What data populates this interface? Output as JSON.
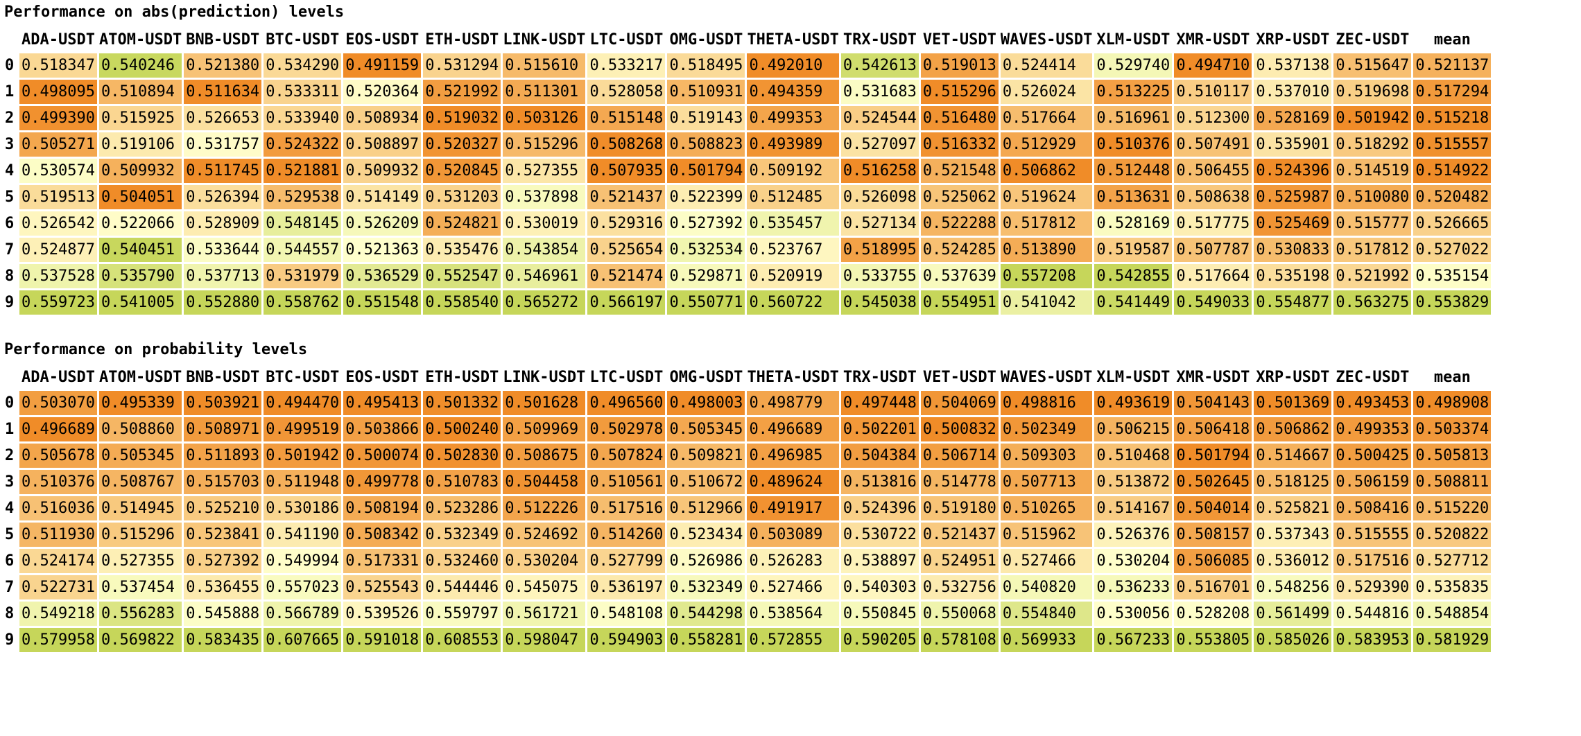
{
  "tables": [
    {
      "title": "Performance on abs(prediction) levels",
      "columns": [
        "ADA-USDT",
        "ATOM-USDT",
        "BNB-USDT",
        "BTC-USDT",
        "EOS-USDT",
        "ETH-USDT",
        "LINK-USDT",
        "LTC-USDT",
        "OMG-USDT",
        "THETA-USDT",
        "TRX-USDT",
        "VET-USDT",
        "WAVES-USDT",
        "XLM-USDT",
        "XMR-USDT",
        "XRP-USDT",
        "ZEC-USDT",
        "mean"
      ],
      "index": [
        "0",
        "1",
        "2",
        "3",
        "4",
        "5",
        "6",
        "7",
        "8",
        "9"
      ],
      "rows": [
        [
          "0.518347",
          "0.540246",
          "0.521380",
          "0.534290",
          "0.491159",
          "0.531294",
          "0.515610",
          "0.533217",
          "0.518495",
          "0.492010",
          "0.542613",
          "0.519013",
          "0.524414",
          "0.529740",
          "0.494710",
          "0.537138",
          "0.515647",
          "0.521137"
        ],
        [
          "0.498095",
          "0.510894",
          "0.511634",
          "0.533311",
          "0.520364",
          "0.521992",
          "0.511301",
          "0.528058",
          "0.510931",
          "0.494359",
          "0.531683",
          "0.515296",
          "0.526024",
          "0.513225",
          "0.510117",
          "0.537010",
          "0.519698",
          "0.517294"
        ],
        [
          "0.499390",
          "0.515925",
          "0.526653",
          "0.533940",
          "0.508934",
          "0.519032",
          "0.503126",
          "0.515148",
          "0.519143",
          "0.499353",
          "0.524544",
          "0.516480",
          "0.517664",
          "0.516961",
          "0.512300",
          "0.528169",
          "0.501942",
          "0.515218"
        ],
        [
          "0.505271",
          "0.519106",
          "0.531757",
          "0.524322",
          "0.508897",
          "0.520327",
          "0.515296",
          "0.508268",
          "0.508823",
          "0.493989",
          "0.527097",
          "0.516332",
          "0.512929",
          "0.510376",
          "0.507491",
          "0.535901",
          "0.518292",
          "0.515557"
        ],
        [
          "0.530574",
          "0.509932",
          "0.511745",
          "0.521881",
          "0.509932",
          "0.520845",
          "0.527355",
          "0.507935",
          "0.501794",
          "0.509192",
          "0.516258",
          "0.521548",
          "0.506862",
          "0.512448",
          "0.506455",
          "0.524396",
          "0.514519",
          "0.514922"
        ],
        [
          "0.519513",
          "0.504051",
          "0.526394",
          "0.529538",
          "0.514149",
          "0.531203",
          "0.537898",
          "0.521437",
          "0.522399",
          "0.512485",
          "0.526098",
          "0.525062",
          "0.519624",
          "0.513631",
          "0.508638",
          "0.525987",
          "0.510080",
          "0.520482"
        ],
        [
          "0.526542",
          "0.522066",
          "0.528909",
          "0.548145",
          "0.526209",
          "0.524821",
          "0.530019",
          "0.529316",
          "0.527392",
          "0.535457",
          "0.527134",
          "0.522288",
          "0.517812",
          "0.528169",
          "0.517775",
          "0.525469",
          "0.515777",
          "0.526665"
        ],
        [
          "0.524877",
          "0.540451",
          "0.533644",
          "0.544557",
          "0.521363",
          "0.535476",
          "0.543854",
          "0.525654",
          "0.532534",
          "0.523767",
          "0.518995",
          "0.524285",
          "0.513890",
          "0.519587",
          "0.507787",
          "0.530833",
          "0.517812",
          "0.527022"
        ],
        [
          "0.537528",
          "0.535790",
          "0.537713",
          "0.531979",
          "0.536529",
          "0.552547",
          "0.546961",
          "0.521474",
          "0.529871",
          "0.520919",
          "0.533755",
          "0.537639",
          "0.557208",
          "0.542855",
          "0.517664",
          "0.535198",
          "0.521992",
          "0.535154"
        ],
        [
          "0.559723",
          "0.541005",
          "0.552880",
          "0.558762",
          "0.551548",
          "0.558540",
          "0.565272",
          "0.566197",
          "0.550771",
          "0.560722",
          "0.545038",
          "0.554951",
          "0.541042",
          "0.541449",
          "0.549033",
          "0.554877",
          "0.563275",
          "0.553829"
        ]
      ]
    },
    {
      "title": "Performance on probability levels",
      "columns": [
        "ADA-USDT",
        "ATOM-USDT",
        "BNB-USDT",
        "BTC-USDT",
        "EOS-USDT",
        "ETH-USDT",
        "LINK-USDT",
        "LTC-USDT",
        "OMG-USDT",
        "THETA-USDT",
        "TRX-USDT",
        "VET-USDT",
        "WAVES-USDT",
        "XLM-USDT",
        "XMR-USDT",
        "XRP-USDT",
        "ZEC-USDT",
        "mean"
      ],
      "index": [
        "0",
        "1",
        "2",
        "3",
        "4",
        "5",
        "6",
        "7",
        "8",
        "9"
      ],
      "rows": [
        [
          "0.503070",
          "0.495339",
          "0.503921",
          "0.494470",
          "0.495413",
          "0.501332",
          "0.501628",
          "0.496560",
          "0.498003",
          "0.498779",
          "0.497448",
          "0.504069",
          "0.498816",
          "0.493619",
          "0.504143",
          "0.501369",
          "0.493453",
          "0.498908"
        ],
        [
          "0.496689",
          "0.508860",
          "0.508971",
          "0.499519",
          "0.503866",
          "0.500240",
          "0.509969",
          "0.502978",
          "0.505345",
          "0.496689",
          "0.502201",
          "0.500832",
          "0.502349",
          "0.506215",
          "0.506418",
          "0.506862",
          "0.499353",
          "0.503374"
        ],
        [
          "0.505678",
          "0.505345",
          "0.511893",
          "0.501942",
          "0.500074",
          "0.502830",
          "0.508675",
          "0.507824",
          "0.509821",
          "0.496985",
          "0.504384",
          "0.506714",
          "0.509303",
          "0.510468",
          "0.501794",
          "0.514667",
          "0.500425",
          "0.505813"
        ],
        [
          "0.510376",
          "0.508767",
          "0.515703",
          "0.511948",
          "0.499778",
          "0.510783",
          "0.504458",
          "0.510561",
          "0.510672",
          "0.489624",
          "0.513816",
          "0.514778",
          "0.507713",
          "0.513872",
          "0.502645",
          "0.518125",
          "0.506159",
          "0.508811"
        ],
        [
          "0.516036",
          "0.514945",
          "0.525210",
          "0.530186",
          "0.508194",
          "0.523286",
          "0.512226",
          "0.517516",
          "0.512966",
          "0.491917",
          "0.524396",
          "0.519180",
          "0.510265",
          "0.514167",
          "0.504014",
          "0.525821",
          "0.508416",
          "0.515220"
        ],
        [
          "0.511930",
          "0.515296",
          "0.523841",
          "0.541190",
          "0.508342",
          "0.532349",
          "0.524692",
          "0.514260",
          "0.523434",
          "0.503089",
          "0.530722",
          "0.521437",
          "0.515962",
          "0.526376",
          "0.508157",
          "0.537343",
          "0.515555",
          "0.520822"
        ],
        [
          "0.524174",
          "0.527355",
          "0.527392",
          "0.549994",
          "0.517331",
          "0.532460",
          "0.530204",
          "0.527799",
          "0.526986",
          "0.526283",
          "0.538897",
          "0.524951",
          "0.527466",
          "0.530204",
          "0.506085",
          "0.536012",
          "0.517516",
          "0.527712"
        ],
        [
          "0.522731",
          "0.537454",
          "0.536455",
          "0.557023",
          "0.525543",
          "0.544446",
          "0.545075",
          "0.536197",
          "0.532349",
          "0.527466",
          "0.540303",
          "0.532756",
          "0.540820",
          "0.536233",
          "0.516701",
          "0.548256",
          "0.529390",
          "0.535835"
        ],
        [
          "0.549218",
          "0.556283",
          "0.545888",
          "0.566789",
          "0.539526",
          "0.559797",
          "0.561721",
          "0.548108",
          "0.544298",
          "0.538564",
          "0.550845",
          "0.550068",
          "0.554840",
          "0.530056",
          "0.528208",
          "0.561499",
          "0.544816",
          "0.548854"
        ],
        [
          "0.579958",
          "0.569822",
          "0.583435",
          "0.607665",
          "0.591018",
          "0.608553",
          "0.598047",
          "0.594903",
          "0.558281",
          "0.572855",
          "0.590205",
          "0.578108",
          "0.569933",
          "0.567233",
          "0.553805",
          "0.585026",
          "0.583953",
          "0.581929"
        ]
      ]
    }
  ],
  "colormap": {
    "low": "#f08c28",
    "mid": "#ffffcc",
    "high": "#c6d65a"
  }
}
